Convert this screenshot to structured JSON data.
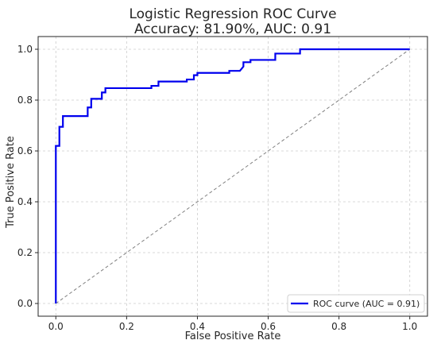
{
  "chart_data": {
    "type": "line",
    "title": [
      "Logistic Regression ROC Curve",
      "Accuracy: 81.90%, AUC: 0.91"
    ],
    "xlabel": "False Positive Rate",
    "ylabel": "True Positive Rate",
    "xlim": [
      -0.05,
      1.05
    ],
    "ylim": [
      -0.05,
      1.05
    ],
    "x_ticks": [
      "0.0",
      "0.2",
      "0.4",
      "0.6",
      "0.8",
      "1.0"
    ],
    "y_ticks": [
      "0.0",
      "0.2",
      "0.4",
      "0.6",
      "0.8",
      "1.0"
    ],
    "grid": true,
    "grid_style": "dashed",
    "legend_position": "lower-right",
    "series": [
      {
        "name": "ROC curve (AUC = 0.91)",
        "color": "#0000ee",
        "style": "solid",
        "x": [
          0.0,
          0.0,
          0.0,
          0.01,
          0.01,
          0.02,
          0.02,
          0.09,
          0.09,
          0.1,
          0.1,
          0.13,
          0.13,
          0.14,
          0.14,
          0.27,
          0.27,
          0.29,
          0.29,
          0.37,
          0.37,
          0.39,
          0.39,
          0.4,
          0.4,
          0.49,
          0.49,
          0.52,
          0.53,
          0.53,
          0.55,
          0.55,
          0.62,
          0.62,
          0.69,
          0.69,
          1.0
        ],
        "y": [
          0.0,
          0.62,
          0.62,
          0.62,
          0.695,
          0.695,
          0.737,
          0.737,
          0.771,
          0.771,
          0.805,
          0.805,
          0.83,
          0.83,
          0.847,
          0.847,
          0.856,
          0.856,
          0.873,
          0.873,
          0.881,
          0.881,
          0.898,
          0.898,
          0.907,
          0.907,
          0.915,
          0.915,
          0.932,
          0.949,
          0.949,
          0.958,
          0.958,
          0.983,
          0.983,
          1.0,
          1.0
        ]
      },
      {
        "name": "",
        "color": "#808080",
        "style": "dashed",
        "x": [
          0,
          1
        ],
        "y": [
          0,
          1
        ]
      }
    ]
  }
}
